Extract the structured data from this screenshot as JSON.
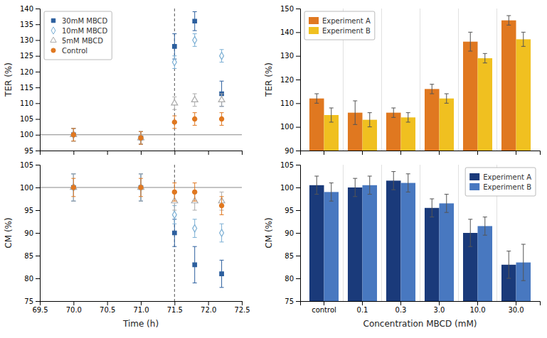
{
  "chart_data": [
    {
      "type": "scatter",
      "ylabel": "TER (%)",
      "ylim": [
        95,
        140
      ],
      "yticks": [
        95,
        100,
        105,
        110,
        115,
        120,
        125,
        130,
        135,
        140
      ],
      "xlim": [
        69.5,
        72.5
      ],
      "xticks": [
        69.5,
        70.0,
        70.5,
        71.0,
        71.5,
        72.0,
        72.5
      ],
      "tick_labels": "y",
      "legend": "upper left",
      "hline": 100,
      "vline": 71.5,
      "series": [
        {
          "name": "30mM MBCD",
          "color": "#2c5f9e",
          "marker": "square",
          "x": [
            70.0,
            71.0,
            71.5,
            71.8,
            72.2
          ],
          "values": [
            100,
            99,
            128,
            136,
            113
          ],
          "errors": [
            2,
            2,
            4,
            3,
            4
          ]
        },
        {
          "name": "10mM MBCD",
          "color": "#7bafd4",
          "marker": "diamond-open",
          "x": [
            70.0,
            71.0,
            71.5,
            71.8,
            72.2
          ],
          "values": [
            100,
            99,
            123,
            130,
            125
          ],
          "errors": [
            2,
            2,
            2,
            2,
            2
          ]
        },
        {
          "name": "5mM MBCD",
          "color": "#aaaaaa",
          "marker": "triangle-up-open",
          "x": [
            70.0,
            71.0,
            71.5,
            71.8,
            72.2
          ],
          "values": [
            100,
            99,
            110,
            111,
            111
          ],
          "errors": [
            2,
            2,
            2,
            2,
            2
          ]
        },
        {
          "name": "Control",
          "color": "#e07820",
          "marker": "circle",
          "x": [
            70.0,
            71.0,
            71.5,
            71.8,
            72.2
          ],
          "values": [
            100,
            99,
            104,
            105,
            105
          ],
          "errors": [
            2,
            2,
            2,
            2,
            2
          ]
        }
      ]
    },
    {
      "type": "scatter",
      "xlabel": "Time (h)",
      "ylabel": "CM (%)",
      "ylim": [
        75,
        105
      ],
      "yticks": [
        75,
        80,
        85,
        90,
        95,
        100,
        105
      ],
      "xlim": [
        69.5,
        72.5
      ],
      "xticks": [
        69.5,
        {
          "value": 70.0,
          "label": "70.0"
        },
        70.5,
        {
          "value": 71.0,
          "label": "71.0"
        },
        71.5,
        {
          "value": 72.0,
          "label": "72.0"
        },
        72.5
      ],
      "hline": 100,
      "vline": 71.5,
      "series": [
        {
          "color": "#2c5f9e",
          "marker": "square",
          "x": [
            70.0,
            71.0,
            71.5,
            71.8,
            72.2
          ],
          "values": [
            100,
            100,
            90,
            83,
            81
          ],
          "errors": [
            3,
            3,
            3,
            4,
            3
          ]
        },
        {
          "color": "#7bafd4",
          "marker": "diamond-open",
          "x": [
            70.0,
            71.0,
            71.5,
            71.8,
            72.2
          ],
          "values": [
            100,
            100,
            94,
            91,
            90
          ],
          "errors": [
            3,
            3,
            2,
            2,
            2
          ]
        },
        {
          "color": "#aaaaaa",
          "marker": "triangle-up-open",
          "x": [
            70.0,
            71.0,
            71.5,
            71.8,
            72.2
          ],
          "values": [
            100,
            100,
            97,
            97,
            97
          ],
          "errors": [
            3,
            3,
            2,
            2,
            2
          ]
        },
        {
          "color": "#e07820",
          "marker": "circle",
          "x": [
            70.0,
            71.0,
            71.5,
            71.8,
            72.2
          ],
          "values": [
            100,
            100,
            99,
            99,
            96
          ],
          "errors": [
            2,
            2,
            2,
            2,
            2
          ]
        }
      ]
    },
    {
      "type": "bar",
      "ylabel": "TER (%)",
      "ylim": [
        90,
        150
      ],
      "yticks": [
        90,
        100,
        110,
        120,
        130,
        140,
        150
      ],
      "categories": [
        null,
        null,
        null,
        null,
        null,
        null
      ],
      "tick_labels": "y",
      "legend": "upper left",
      "series": [
        {
          "name": "Experiment A",
          "color": "#e07820",
          "values": [
            112,
            106,
            106,
            116,
            136,
            145
          ],
          "errors": [
            2,
            5,
            2,
            2,
            4,
            2
          ]
        },
        {
          "name": "Experiment B",
          "color": "#f0c020",
          "values": [
            105,
            103,
            104,
            112,
            129,
            137
          ],
          "errors": [
            3,
            3,
            2,
            2,
            2,
            3
          ]
        }
      ]
    },
    {
      "type": "bar",
      "xlabel": "Concentration MBCD (mM)",
      "ylabel": "CM (%)",
      "ylim": [
        75,
        105
      ],
      "yticks": [
        75,
        80,
        85,
        90,
        95,
        100,
        105
      ],
      "categories": [
        "control",
        "0.1",
        "0.3",
        "3.0",
        "10.0",
        "30.0"
      ],
      "legend": "upper right",
      "series": [
        {
          "name": "Experiment A",
          "color": "#1a3a7a",
          "values": [
            100.5,
            100,
            101.5,
            95.5,
            90,
            83
          ],
          "errors": [
            2,
            2,
            2,
            2,
            3,
            3
          ]
        },
        {
          "name": "Experiment B",
          "color": "#4878c0",
          "values": [
            99,
            100.5,
            101,
            96.5,
            91.5,
            83.5
          ],
          "errors": [
            2,
            2,
            2,
            2,
            2,
            4
          ]
        }
      ]
    }
  ]
}
